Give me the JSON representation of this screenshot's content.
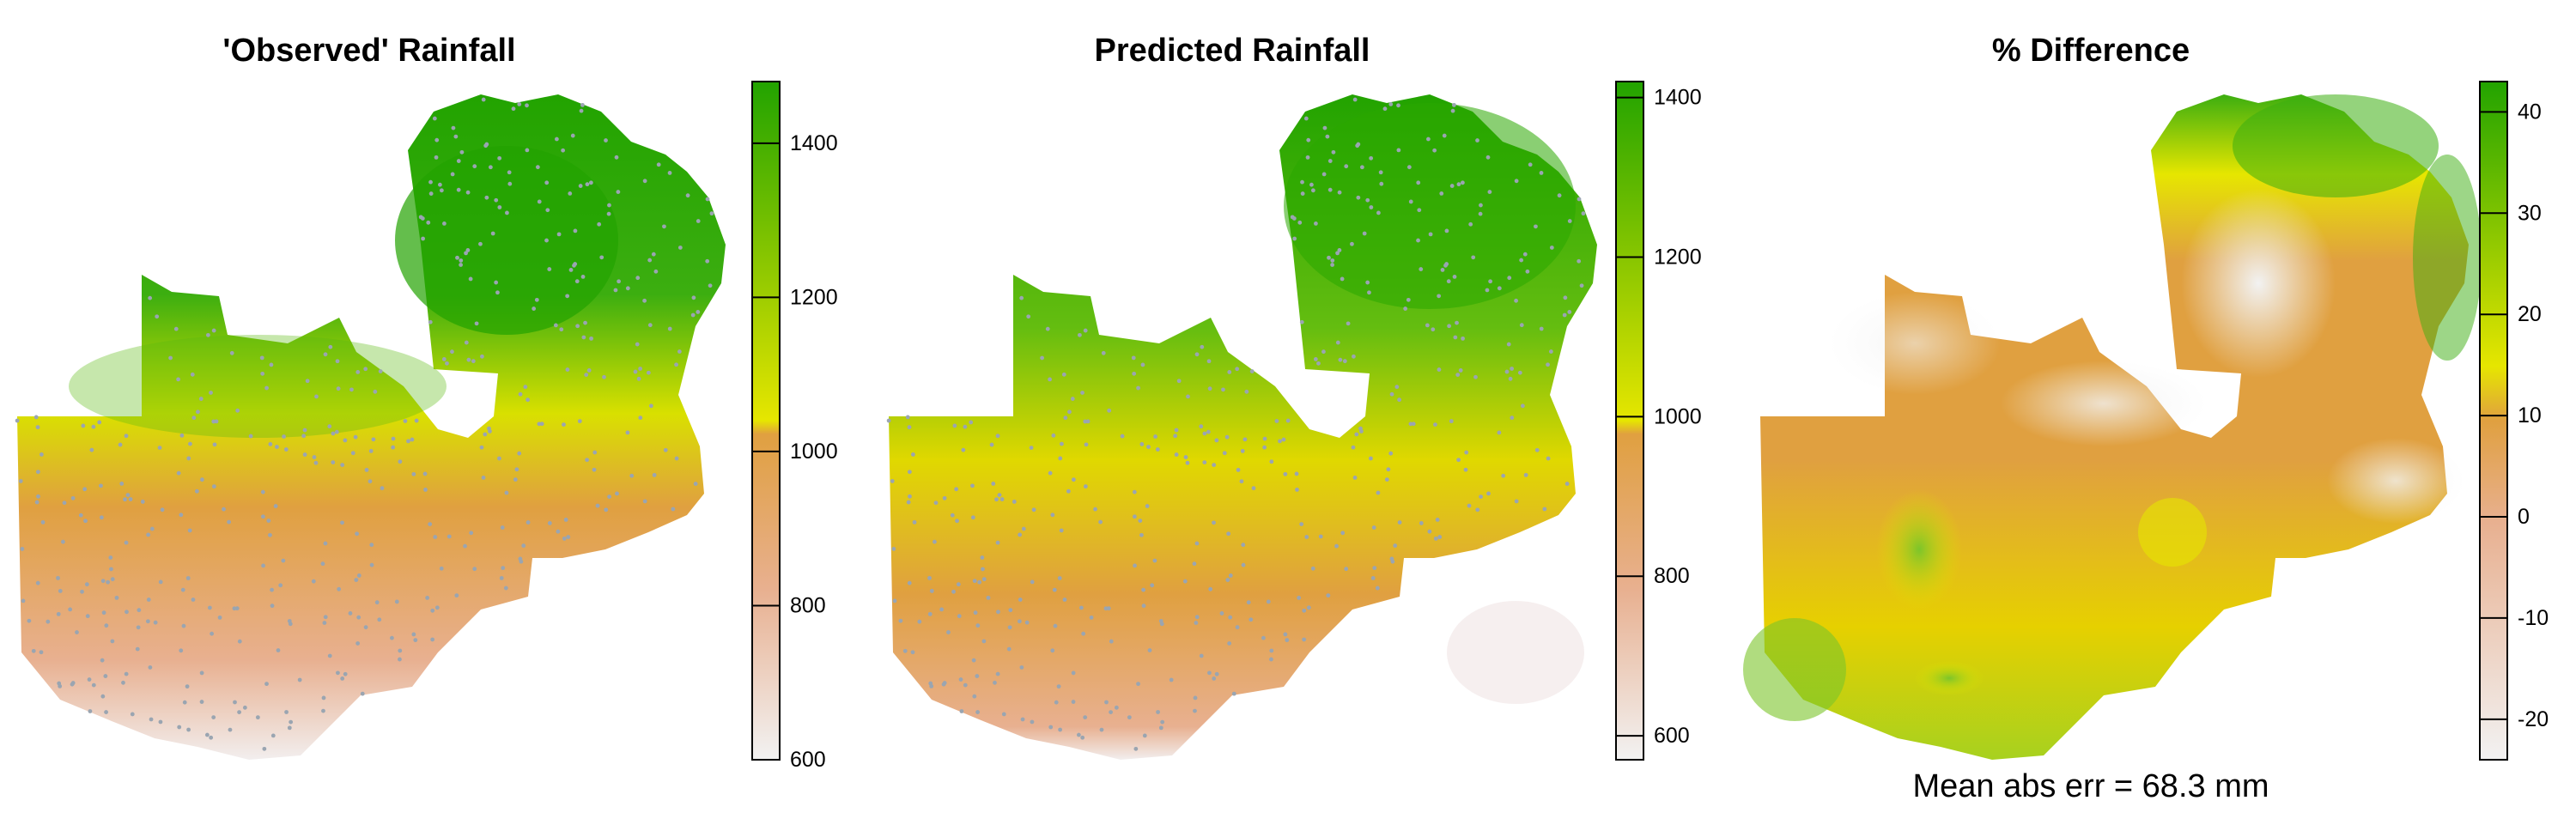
{
  "panels": [
    {
      "title": "'Observed' Rainfall",
      "legend": {
        "ticks": [
          600,
          800,
          1000,
          1200,
          1400
        ],
        "min": 600,
        "max": 1480
      }
    },
    {
      "title": "Predicted Rainfall",
      "legend": {
        "ticks": [
          600,
          800,
          1000,
          1200,
          1400
        ],
        "min": 570,
        "max": 1420
      }
    },
    {
      "title": "% Difference",
      "legend": {
        "ticks": [
          -20,
          -10,
          0,
          10,
          20,
          30,
          40
        ],
        "min": -24,
        "max": 43
      }
    }
  ],
  "caption": "Mean abs err = 68.3 mm",
  "colors": {
    "low": "#f2f2f2",
    "mid_low": "#e8b090",
    "mid": "#e0a040",
    "mid_high": "#e6e600",
    "high": "#22a300",
    "points": "#9aa5b1"
  }
}
